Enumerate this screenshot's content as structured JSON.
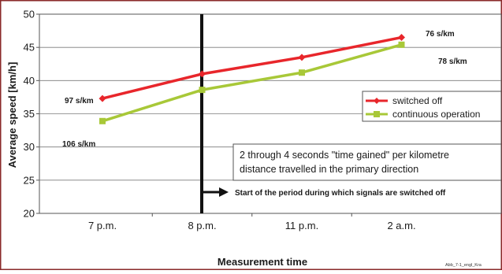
{
  "chart_data": {
    "type": "line",
    "title": "",
    "xlabel": "Measurement time",
    "ylabel": "Average speed [km/h]",
    "categories": [
      "7 p.m.",
      "8 p.m.",
      "11 p.m.",
      "2 a.m."
    ],
    "ylim": [
      20,
      50
    ],
    "yticks": [
      20,
      25,
      30,
      35,
      40,
      45,
      50
    ],
    "grid": true,
    "legend_position": "right",
    "series": [
      {
        "name": "switched off",
        "color": "#e8262b",
        "marker": "diamond",
        "values": [
          37.3,
          41.0,
          43.5,
          46.5
        ]
      },
      {
        "name": "continuous operation",
        "color": "#a8c838",
        "marker": "square",
        "values": [
          33.9,
          38.6,
          41.2,
          45.4
        ]
      }
    ],
    "annotations": {
      "label_97": "97 s/km",
      "label_106": "106 s/km",
      "label_76": "76 s/km",
      "label_78": "78 s/km",
      "time_gained": "2 through 4 seconds \"time gained\" per kilometre distance travelled in the primary direction",
      "switch_off_period": "Start of the period during which signals are switched off",
      "source_code": "Abb_7-1_engl_Kra"
    }
  }
}
